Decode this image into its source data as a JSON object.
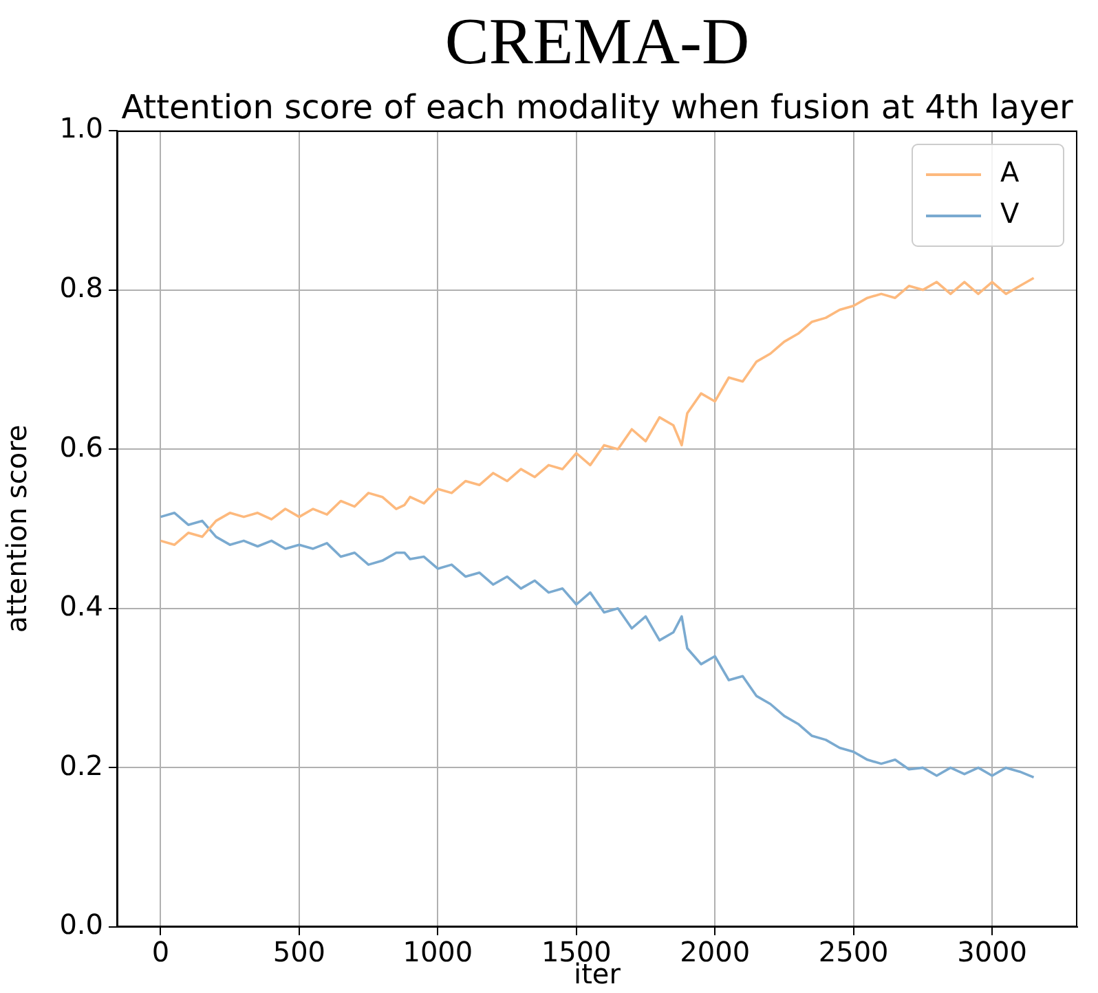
{
  "chart_data": {
    "type": "line",
    "title": "CREMA-D",
    "subtitle": "Attention score of each modality when fusion at 4th layer",
    "xlabel": "iter",
    "ylabel": "attention score",
    "x": [
      0,
      50,
      100,
      150,
      200,
      250,
      300,
      350,
      400,
      450,
      500,
      550,
      600,
      650,
      700,
      750,
      800,
      850,
      880,
      900,
      950,
      1000,
      1050,
      1100,
      1150,
      1200,
      1250,
      1300,
      1350,
      1400,
      1450,
      1500,
      1550,
      1600,
      1650,
      1700,
      1750,
      1800,
      1850,
      1880,
      1900,
      1950,
      2000,
      2050,
      2100,
      2150,
      2200,
      2250,
      2300,
      2350,
      2400,
      2450,
      2500,
      2550,
      2600,
      2650,
      2700,
      2750,
      2800,
      2850,
      2900,
      2950,
      3000,
      3050,
      3100,
      3150
    ],
    "series": [
      {
        "name": "A",
        "color": "#fdb97d",
        "values": [
          0.485,
          0.48,
          0.495,
          0.49,
          0.51,
          0.52,
          0.515,
          0.52,
          0.512,
          0.525,
          0.515,
          0.525,
          0.518,
          0.535,
          0.528,
          0.545,
          0.54,
          0.525,
          0.53,
          0.54,
          0.532,
          0.55,
          0.545,
          0.56,
          0.555,
          0.57,
          0.56,
          0.575,
          0.565,
          0.58,
          0.575,
          0.595,
          0.58,
          0.605,
          0.6,
          0.625,
          0.61,
          0.64,
          0.63,
          0.605,
          0.645,
          0.67,
          0.66,
          0.69,
          0.685,
          0.71,
          0.72,
          0.735,
          0.745,
          0.76,
          0.765,
          0.775,
          0.78,
          0.79,
          0.795,
          0.79,
          0.805,
          0.8,
          0.81,
          0.795,
          0.81,
          0.795,
          0.81,
          0.795,
          0.805,
          0.815
        ]
      },
      {
        "name": "V",
        "color": "#7aaad0",
        "values": [
          0.515,
          0.52,
          0.505,
          0.51,
          0.49,
          0.48,
          0.485,
          0.478,
          0.485,
          0.475,
          0.48,
          0.475,
          0.482,
          0.465,
          0.47,
          0.455,
          0.46,
          0.47,
          0.47,
          0.462,
          0.465,
          0.45,
          0.455,
          0.44,
          0.445,
          0.43,
          0.44,
          0.425,
          0.435,
          0.42,
          0.425,
          0.405,
          0.42,
          0.395,
          0.4,
          0.375,
          0.39,
          0.36,
          0.37,
          0.39,
          0.35,
          0.33,
          0.34,
          0.31,
          0.315,
          0.29,
          0.28,
          0.265,
          0.255,
          0.24,
          0.235,
          0.225,
          0.22,
          0.21,
          0.205,
          0.21,
          0.198,
          0.2,
          0.19,
          0.2,
          0.192,
          0.2,
          0.19,
          0.2,
          0.195,
          0.188
        ]
      }
    ],
    "xlim": [
      -157.5,
      3307.5
    ],
    "xticks": [
      0,
      500,
      1000,
      1500,
      2000,
      2500,
      3000
    ],
    "ylim": [
      0,
      1
    ],
    "yticks": [
      {
        "value": 0,
        "label": "0.0"
      },
      0.2,
      0.4,
      0.6,
      0.8,
      {
        "value": 1,
        "label": "1.0"
      }
    ],
    "grid": true,
    "legend": "top right",
    "marker": "none",
    "line_style": "solid"
  }
}
